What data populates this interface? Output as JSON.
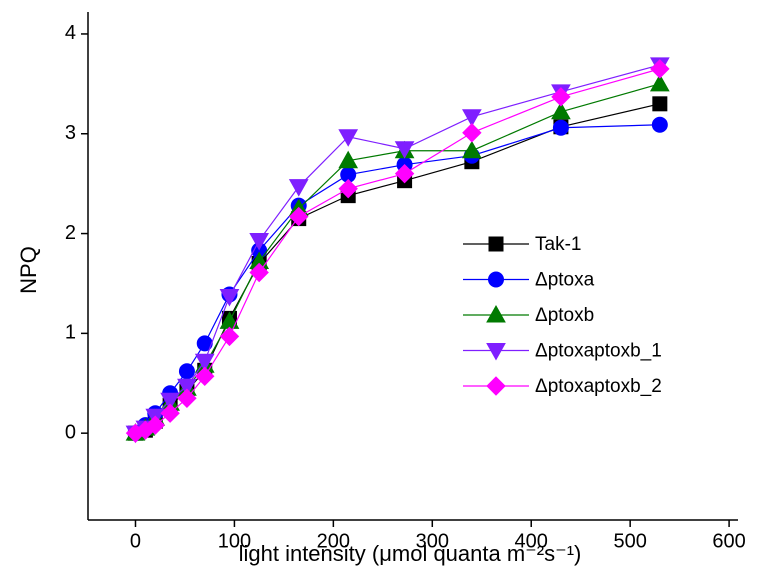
{
  "chart_data": {
    "type": "line",
    "x_label": "light intensity (μmol quanta m⁻²s⁻¹)",
    "y_label": "NPQ",
    "x": [
      0,
      10,
      20,
      35,
      52,
      70,
      95,
      125,
      165,
      215,
      272,
      340,
      430,
      530
    ],
    "series": [
      {
        "name": "Tak-1",
        "color": "#000000",
        "marker": "square",
        "values": [
          0,
          0.03,
          0.12,
          0.28,
          0.42,
          0.63,
          1.15,
          1.7,
          2.15,
          2.38,
          2.53,
          2.72,
          3.07,
          3.3
        ]
      },
      {
        "name": "Δptoxa",
        "color": "#0000ff",
        "marker": "circle",
        "values": [
          0,
          0.08,
          0.2,
          0.4,
          0.62,
          0.9,
          1.39,
          1.83,
          2.28,
          2.59,
          2.69,
          2.78,
          3.06,
          3.09
        ]
      },
      {
        "name": "Δptoxb",
        "color": "#007a00",
        "marker": "triangle-up",
        "values": [
          0,
          0.05,
          0.15,
          0.3,
          0.45,
          0.68,
          1.12,
          1.72,
          2.25,
          2.73,
          2.83,
          2.83,
          3.22,
          3.5
        ]
      },
      {
        "name": "Δptoxaptoxb_1",
        "color": "#7f1fff",
        "marker": "triangle-down",
        "values": [
          0,
          0.05,
          0.17,
          0.33,
          0.47,
          0.72,
          1.37,
          1.93,
          2.47,
          2.97,
          2.85,
          3.17,
          3.42,
          3.69
        ]
      },
      {
        "name": "Δptoxaptoxb_2",
        "color": "#ff00ff",
        "marker": "diamond",
        "values": [
          0,
          0.03,
          0.08,
          0.2,
          0.35,
          0.57,
          0.97,
          1.61,
          2.17,
          2.45,
          2.6,
          3.01,
          3.37,
          3.65
        ]
      }
    ],
    "xlim": [
      -48,
      609
    ],
    "xticks": [
      0,
      100,
      200,
      300,
      400,
      500,
      600
    ],
    "ylim": [
      -0.87,
      4.22
    ],
    "yticks": [
      0,
      1,
      2,
      3,
      4
    ],
    "legend": "center right"
  }
}
